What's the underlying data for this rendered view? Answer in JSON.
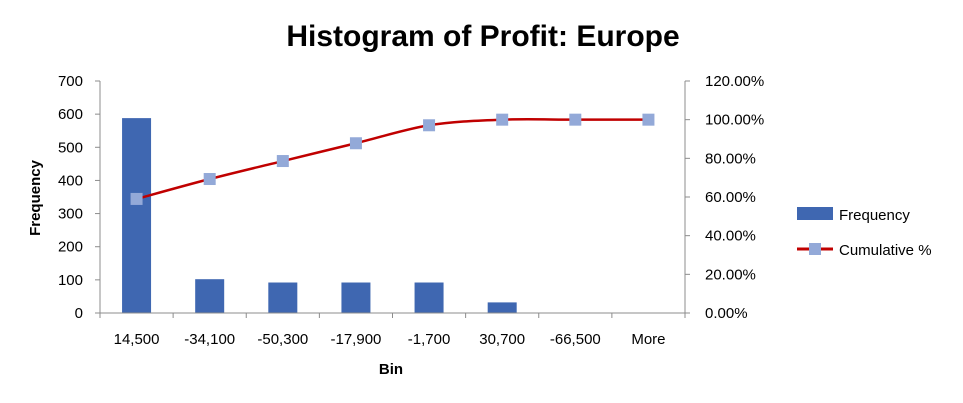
{
  "chart_data": {
    "type": "bar",
    "title": "Histogram of Profit: Europe",
    "xlabel": "Bin",
    "ylabel": "Frequency",
    "categories": [
      "14,500",
      "-34,100",
      "-50,300",
      "-17,900",
      "-1,700",
      "30,700",
      "-66,500",
      "More"
    ],
    "series": [
      {
        "name": "Frequency",
        "kind": "bar",
        "axis": "left",
        "color": "#3f67b1",
        "values": [
          588,
          102,
          92,
          92,
          92,
          32,
          0,
          0
        ]
      },
      {
        "name": "Cumulative %",
        "kind": "line",
        "axis": "right",
        "color": "#c00000",
        "marker_color": "#93a9d8",
        "values": [
          59.0,
          69.3,
          78.6,
          87.8,
          97.1,
          100.0,
          100.0,
          100.0
        ]
      }
    ],
    "ylim": [
      0,
      700
    ],
    "y_ticks": [
      "0",
      "100",
      "200",
      "300",
      "400",
      "500",
      "600",
      "700"
    ],
    "y2lim": [
      0,
      120
    ],
    "y2_ticks": [
      "0.00%",
      "20.00%",
      "40.00%",
      "60.00%",
      "80.00%",
      "100.00%",
      "120.00%"
    ],
    "grid": false,
    "legend_position": "right"
  }
}
